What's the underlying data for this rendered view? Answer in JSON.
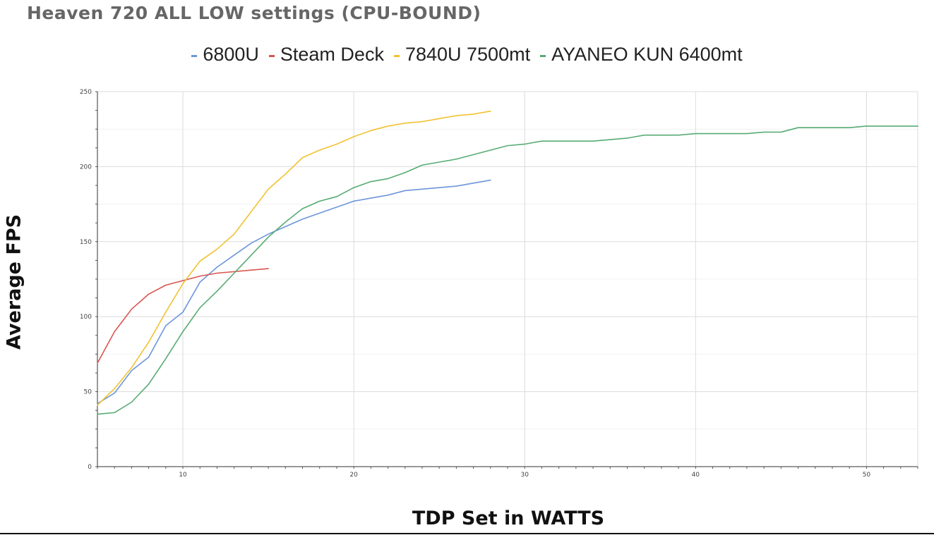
{
  "chart_data": {
    "type": "line",
    "title": "Heaven 720 ALL LOW settings (CPU-BOUND)",
    "xlabel": "TDP Set in WATTS",
    "ylabel": "Average FPS",
    "xlim": [
      5,
      53
    ],
    "ylim": [
      0,
      250
    ],
    "x_ticks": [
      10,
      20,
      30,
      40,
      50
    ],
    "y_ticks": [
      0,
      50,
      100,
      150,
      200,
      250
    ],
    "grid": true,
    "legend_position": "top",
    "series": [
      {
        "name": "6800U",
        "color": "#6d95db",
        "points": [
          [
            5,
            42
          ],
          [
            6,
            49
          ],
          [
            7,
            64
          ],
          [
            8,
            73
          ],
          [
            9,
            94
          ],
          [
            10,
            103
          ],
          [
            11,
            123
          ],
          [
            12,
            133
          ],
          [
            13,
            141
          ],
          [
            14,
            149
          ],
          [
            15,
            155
          ],
          [
            16,
            160
          ],
          [
            17,
            165
          ],
          [
            18,
            169
          ],
          [
            19,
            173
          ],
          [
            20,
            177
          ],
          [
            21,
            179
          ],
          [
            22,
            181
          ],
          [
            23,
            184
          ],
          [
            24,
            185
          ],
          [
            25,
            186
          ],
          [
            26,
            187
          ],
          [
            27,
            189
          ],
          [
            28,
            191
          ]
        ]
      },
      {
        "name": "Steam Deck",
        "color": "#d9544f",
        "points": [
          [
            5,
            69
          ],
          [
            6,
            90
          ],
          [
            7,
            105
          ],
          [
            8,
            115
          ],
          [
            9,
            121
          ],
          [
            10,
            124
          ],
          [
            11,
            127
          ],
          [
            12,
            129
          ],
          [
            13,
            130
          ],
          [
            14,
            131
          ],
          [
            15,
            132
          ]
        ]
      },
      {
        "name": "7840U 7500mt",
        "color": "#f1c232",
        "points": [
          [
            5,
            41
          ],
          [
            6,
            52
          ],
          [
            7,
            66
          ],
          [
            8,
            83
          ],
          [
            9,
            103
          ],
          [
            10,
            122
          ],
          [
            11,
            137
          ],
          [
            12,
            145
          ],
          [
            13,
            155
          ],
          [
            14,
            170
          ],
          [
            15,
            185
          ],
          [
            16,
            195
          ],
          [
            17,
            206
          ],
          [
            18,
            211
          ],
          [
            19,
            215
          ],
          [
            20,
            220
          ],
          [
            21,
            224
          ],
          [
            22,
            227
          ],
          [
            23,
            229
          ],
          [
            24,
            230
          ],
          [
            25,
            232
          ],
          [
            26,
            234
          ],
          [
            27,
            235
          ],
          [
            28,
            237
          ]
        ]
      },
      {
        "name": "AYANEO KUN 6400mt",
        "color": "#57ab74",
        "points": [
          [
            5,
            35
          ],
          [
            6,
            36
          ],
          [
            7,
            43
          ],
          [
            8,
            55
          ],
          [
            9,
            72
          ],
          [
            10,
            90
          ],
          [
            11,
            106
          ],
          [
            12,
            117
          ],
          [
            13,
            129
          ],
          [
            14,
            141
          ],
          [
            15,
            153
          ],
          [
            16,
            163
          ],
          [
            17,
            172
          ],
          [
            18,
            177
          ],
          [
            19,
            180
          ],
          [
            20,
            186
          ],
          [
            21,
            190
          ],
          [
            22,
            192
          ],
          [
            23,
            196
          ],
          [
            24,
            201
          ],
          [
            25,
            203
          ],
          [
            26,
            205
          ],
          [
            27,
            208
          ],
          [
            28,
            211
          ],
          [
            29,
            214
          ],
          [
            30,
            215
          ],
          [
            31,
            217
          ],
          [
            32,
            217
          ],
          [
            33,
            217
          ],
          [
            34,
            217
          ],
          [
            35,
            218
          ],
          [
            36,
            219
          ],
          [
            37,
            221
          ],
          [
            38,
            221
          ],
          [
            39,
            221
          ],
          [
            40,
            222
          ],
          [
            41,
            222
          ],
          [
            42,
            222
          ],
          [
            43,
            222
          ],
          [
            44,
            223
          ],
          [
            45,
            223
          ],
          [
            46,
            226
          ],
          [
            47,
            226
          ],
          [
            48,
            226
          ],
          [
            49,
            226
          ],
          [
            50,
            227
          ],
          [
            51,
            227
          ],
          [
            52,
            227
          ],
          [
            53,
            227
          ]
        ]
      }
    ]
  }
}
